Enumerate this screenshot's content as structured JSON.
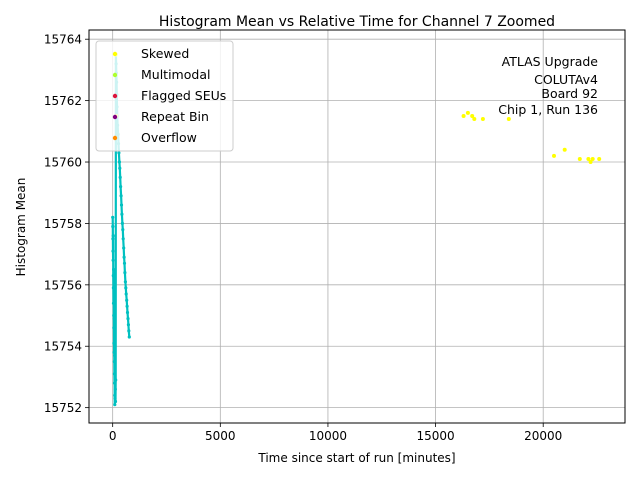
{
  "chart_data": {
    "type": "scatter",
    "title": "Histogram Mean vs Relative Time for Channel 7 Zoomed",
    "xlabel": "Time since start of run [minutes]",
    "ylabel": "Histogram Mean",
    "xlim": [
      -1100,
      23800
    ],
    "ylim": [
      15751.5,
      15764.3
    ],
    "xticks": [
      0,
      5000,
      10000,
      15000,
      20000
    ],
    "yticks": [
      15752,
      15754,
      15756,
      15758,
      15760,
      15762,
      15764
    ],
    "grid": true,
    "legend": {
      "placement": "top-left",
      "entries": [
        {
          "label": "Skewed",
          "color": "#ffff00"
        },
        {
          "label": "Multimodal",
          "color": "#adff2f"
        },
        {
          "label": "Flagged SEUs",
          "color": "#dc143c"
        },
        {
          "label": "Repeat Bin",
          "color": "#800080"
        },
        {
          "label": "Overflow",
          "color": "#ff8c00"
        }
      ]
    },
    "annotation": [
      "ATLAS Upgrade",
      "COLUTAv4",
      "Board 92",
      "Chip 1, Run 136"
    ],
    "series": [
      {
        "color": "#00c0c0",
        "x": [
          0,
          5,
          10,
          15,
          20,
          25,
          30,
          35,
          40,
          45,
          50,
          55,
          60,
          65,
          70,
          75,
          80,
          85,
          90,
          95,
          100,
          110,
          120,
          130,
          140,
          150,
          160,
          170,
          180,
          190,
          200,
          215,
          230,
          250,
          270,
          290,
          310,
          330,
          350,
          370,
          390,
          410,
          430,
          450,
          470,
          490,
          510,
          530,
          550,
          570,
          590,
          610,
          630,
          650,
          670,
          690,
          710,
          730,
          750,
          770
        ],
        "y": [
          15758.2,
          15757.9,
          15757.5,
          15757.1,
          15756.8,
          15757.6,
          15756.3,
          15755.9,
          15755.4,
          15756.5,
          15755.0,
          15754.6,
          15754.1,
          15753.8,
          15754.9,
          15753.5,
          15753.1,
          15752.8,
          15753.7,
          15752.4,
          15752.1,
          15752.3,
          15752.6,
          15752.2,
          15752.9,
          15763.5,
          15763.2,
          15762.9,
          15762.6,
          15762.2,
          15761.8,
          15761.5,
          15761.2,
          15760.9,
          15760.6,
          15760.3,
          15760.0,
          15759.8,
          15759.5,
          15759.2,
          15758.9,
          15758.6,
          15758.3,
          15758.0,
          15757.8,
          15757.5,
          15757.2,
          15756.9,
          15756.7,
          15756.4,
          15756.1,
          15755.9,
          15755.7,
          15755.5,
          15755.3,
          15755.1,
          15754.9,
          15754.7,
          15754.5,
          15754.3
        ]
      },
      {
        "name": "Skewed",
        "color": "#ffff00",
        "x": [
          150,
          170,
          16300,
          16500,
          16700,
          16800,
          17200,
          18400,
          20500,
          21000,
          21700,
          22100,
          22200,
          22300,
          22600
        ],
        "y": [
          15763.5,
          15761.5,
          15761.5,
          15761.6,
          15761.5,
          15761.4,
          15761.4,
          15761.4,
          15760.2,
          15760.4,
          15760.1,
          15760.1,
          15760.0,
          15760.1,
          15760.1
        ]
      }
    ]
  }
}
